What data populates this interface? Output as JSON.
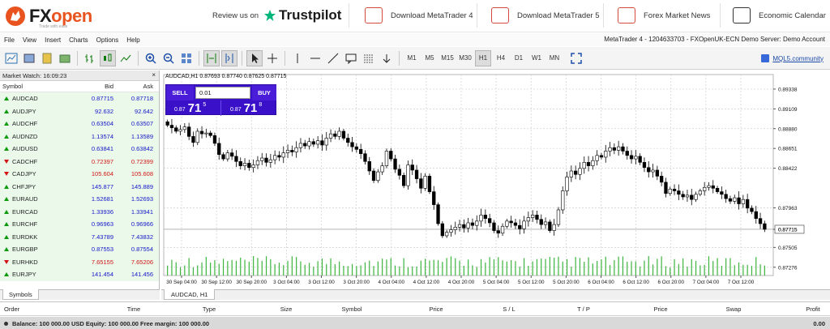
{
  "top": {
    "logo_fx": "FX",
    "logo_open": "open",
    "logo_tagline": "Trade with ease",
    "review_prefix": "Review us on",
    "trustpilot": "Trustpilot",
    "links": [
      "Download MetaTrader 4",
      "Download MetaTrader 5",
      "Forex Market News",
      "Economic Calendar"
    ]
  },
  "menu": {
    "items": [
      "File",
      "View",
      "Insert",
      "Charts",
      "Options",
      "Help"
    ],
    "account": "MetaTrader 4 - 1204633703 - FXOpenUK-ECN Demo Server: Demo Account"
  },
  "toolbar": {
    "timeframes": [
      "M1",
      "M5",
      "M15",
      "M30",
      "H1",
      "H4",
      "D1",
      "W1",
      "MN"
    ],
    "active_timeframe": "H1",
    "mql5": "MQL5.community"
  },
  "market_watch": {
    "title": "Market Watch: 16:09:23",
    "headers": {
      "symbol": "Symbol",
      "bid": "Bid",
      "ask": "Ask"
    },
    "tab": "Symbols",
    "rows": [
      {
        "symbol": "AUDCAD",
        "bid": "0.87715",
        "ask": "0.87718",
        "dir": "up"
      },
      {
        "symbol": "AUDJPY",
        "bid": "92.632",
        "ask": "92.642",
        "dir": "up"
      },
      {
        "symbol": "AUDCHF",
        "bid": "0.63504",
        "ask": "0.63507",
        "dir": "up"
      },
      {
        "symbol": "AUDNZD",
        "bid": "1.13574",
        "ask": "1.13589",
        "dir": "up"
      },
      {
        "symbol": "AUDUSD",
        "bid": "0.63841",
        "ask": "0.63842",
        "dir": "up"
      },
      {
        "symbol": "CADCHF",
        "bid": "0.72397",
        "ask": "0.72399",
        "dir": "down"
      },
      {
        "symbol": "CADJPY",
        "bid": "105.604",
        "ask": "105.608",
        "dir": "down"
      },
      {
        "symbol": "CHFJPY",
        "bid": "145.877",
        "ask": "145.889",
        "dir": "up"
      },
      {
        "symbol": "EURAUD",
        "bid": "1.52681",
        "ask": "1.52693",
        "dir": "up"
      },
      {
        "symbol": "EURCAD",
        "bid": "1.33936",
        "ask": "1.33941",
        "dir": "up"
      },
      {
        "symbol": "EURCHF",
        "bid": "0.96963",
        "ask": "0.96966",
        "dir": "up"
      },
      {
        "symbol": "EURDKK",
        "bid": "7.43789",
        "ask": "7.43832",
        "dir": "up"
      },
      {
        "symbol": "EURGBP",
        "bid": "0.87553",
        "ask": "0.87554",
        "dir": "up"
      },
      {
        "symbol": "EURHKD",
        "bid": "7.65155",
        "ask": "7.65206",
        "dir": "down"
      },
      {
        "symbol": "EURJPY",
        "bid": "141.454",
        "ask": "141.456",
        "dir": "up"
      }
    ]
  },
  "chart": {
    "title": "AUDCAD,H1  0.87693 0.87740 0.87625 0.87715",
    "tab": "AUDCAD, H1",
    "sell_label": "SELL",
    "buy_label": "BUY",
    "lot": "0.01",
    "sell_price": {
      "small": "0.87",
      "big": "71",
      "sup": "5"
    },
    "buy_price": {
      "small": "0.87",
      "big": "71",
      "sup": "8"
    },
    "current_price": "0.87715"
  },
  "chart_data": {
    "type": "candlestick",
    "symbol": "AUDCAD",
    "timeframe": "H1",
    "y_ticks": [
      0.89338,
      0.89109,
      0.8888,
      0.88651,
      0.88422,
      0.87963,
      0.87715,
      0.87505,
      0.87276
    ],
    "x_ticks": [
      "30 Sep 04:00",
      "30 Sep 12:00",
      "30 Sep 20:00",
      "3 Oct 04:00",
      "3 Oct 12:00",
      "3 Oct 20:00",
      "4 Oct 04:00",
      "4 Oct 12:00",
      "4 Oct 20:00",
      "5 Oct 04:00",
      "5 Oct 12:00",
      "5 Oct 20:00",
      "6 Oct 04:00",
      "6 Oct 12:00",
      "6 Oct 20:00",
      "7 Oct 04:00",
      "7 Oct 12:00"
    ],
    "ylim": [
      0.8718,
      0.8945
    ],
    "closes": [
      0.8892,
      0.8889,
      0.8885,
      0.8887,
      0.889,
      0.8879,
      0.8872,
      0.8885,
      0.8882,
      0.8883,
      0.888,
      0.8871,
      0.8858,
      0.8853,
      0.886,
      0.8856,
      0.885,
      0.8845,
      0.8848,
      0.8843,
      0.8846,
      0.8851,
      0.8854,
      0.8849,
      0.8852,
      0.8857,
      0.8855,
      0.886,
      0.8863,
      0.8861,
      0.8866,
      0.8871,
      0.8868,
      0.8873,
      0.887,
      0.8874,
      0.8869,
      0.8877,
      0.8882,
      0.8879,
      0.8885,
      0.8877,
      0.8872,
      0.8867,
      0.8864,
      0.8859,
      0.885,
      0.8839,
      0.8828,
      0.8838,
      0.8845,
      0.8862,
      0.8853,
      0.8841,
      0.8834,
      0.8822,
      0.8846,
      0.884,
      0.883,
      0.8819,
      0.8833,
      0.8815,
      0.88,
      0.8778,
      0.8764,
      0.8768,
      0.8771,
      0.8774,
      0.8777,
      0.8773,
      0.8779,
      0.8776,
      0.8781,
      0.8788,
      0.8784,
      0.8779,
      0.877,
      0.8767,
      0.8775,
      0.8781,
      0.8779,
      0.8776,
      0.8772,
      0.8781,
      0.8785,
      0.8788,
      0.8783,
      0.8777,
      0.878,
      0.877,
      0.8777,
      0.8794,
      0.8816,
      0.8832,
      0.8839,
      0.8835,
      0.8842,
      0.8849,
      0.8845,
      0.8851,
      0.8857,
      0.8855,
      0.8862,
      0.8866,
      0.8863,
      0.8867,
      0.8862,
      0.8857,
      0.8853,
      0.8856,
      0.8849,
      0.8843,
      0.8838,
      0.884,
      0.8833,
      0.8826,
      0.8813,
      0.8818,
      0.8816,
      0.8812,
      0.8809,
      0.8811,
      0.8806,
      0.8812,
      0.8816,
      0.882,
      0.8822,
      0.8819,
      0.8815,
      0.8812,
      0.8807,
      0.8804,
      0.8808,
      0.8801,
      0.8806,
      0.8796,
      0.8792,
      0.8784,
      0.8778,
      0.87715
    ]
  },
  "terminal": {
    "headers": [
      "Order",
      "Time",
      "Type",
      "Size",
      "Symbol",
      "Price",
      "S / L",
      "T / P",
      "Price",
      "Swap",
      "Profit"
    ],
    "balance_line": "Balance: 100 000.00 USD  Equity: 100 000.00  Free margin: 100 000.00",
    "total": "0.00"
  }
}
